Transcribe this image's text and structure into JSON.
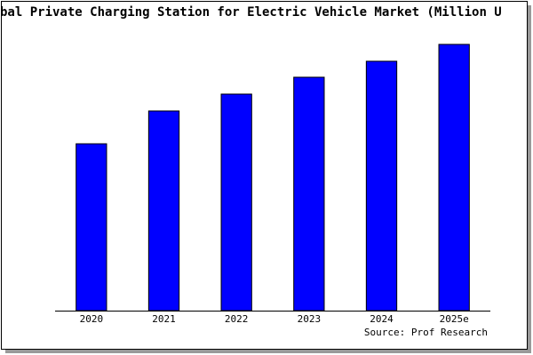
{
  "chart_data": {
    "type": "bar",
    "title": "bal Private Charging Station for Electric Vehicle Market (Million U",
    "source": "Source: Prof Research",
    "categories": [
      "2020",
      "2021",
      "2022",
      "2023",
      "2024",
      "2025e"
    ],
    "values": [
      188,
      225,
      244,
      263,
      281,
      300
    ],
    "color": "#0000ff",
    "ylim": [
      0,
      302
    ]
  }
}
